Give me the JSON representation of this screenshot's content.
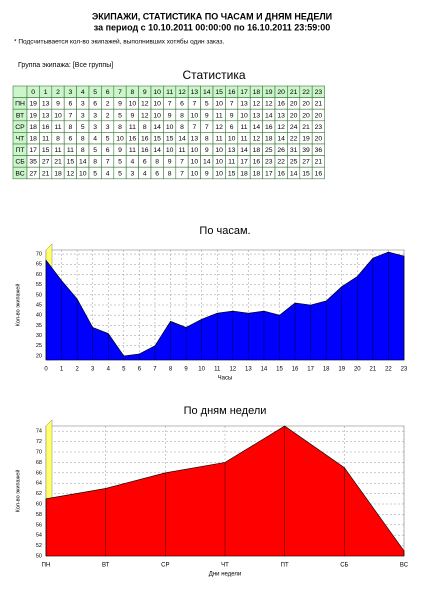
{
  "header": {
    "title": "ЭКИПАЖИ, СТАТИСТИКА ПО ЧАСАМ И ДНЯМ НЕДЕЛИ",
    "period": "за период с 10.10.2011 00:00:00 по 16.10.2011 23:59:00"
  },
  "note": "* Подсчитывается кол-во экипажей, выполнивших хотябы один заказ.",
  "group": "Группа экипажа: [Все группы]",
  "table": {
    "title": "Статистика",
    "columns": [
      0,
      1,
      2,
      3,
      4,
      5,
      6,
      7,
      8,
      9,
      10,
      11,
      12,
      13,
      14,
      15,
      16,
      17,
      18,
      19,
      20,
      21,
      22,
      23
    ],
    "rows": [
      {
        "day": "ПН",
        "values": [
          19,
          13,
          9,
          6,
          3,
          6,
          2,
          9,
          10,
          12,
          10,
          7,
          6,
          7,
          5,
          10,
          7,
          13,
          12,
          12,
          16,
          20,
          20,
          21
        ]
      },
      {
        "day": "ВТ",
        "values": [
          19,
          13,
          10,
          7,
          3,
          3,
          2,
          5,
          9,
          12,
          10,
          9,
          8,
          10,
          9,
          11,
          9,
          10,
          13,
          14,
          13,
          20,
          20,
          20
        ]
      },
      {
        "day": "СР",
        "values": [
          18,
          16,
          11,
          8,
          5,
          3,
          3,
          8,
          11,
          8,
          14,
          10,
          8,
          7,
          7,
          12,
          6,
          11,
          14,
          16,
          12,
          24,
          21,
          23
        ]
      },
      {
        "day": "ЧТ",
        "values": [
          18,
          11,
          8,
          6,
          8,
          4,
          5,
          10,
          16,
          16,
          15,
          15,
          14,
          13,
          8,
          11,
          10,
          11,
          12,
          18,
          14,
          22,
          19,
          20
        ]
      },
      {
        "day": "ПТ",
        "values": [
          17,
          15,
          11,
          11,
          8,
          5,
          6,
          9,
          11,
          16,
          14,
          10,
          11,
          10,
          9,
          10,
          13,
          14,
          18,
          25,
          26,
          31,
          39,
          36
        ]
      },
      {
        "day": "СБ",
        "values": [
          35,
          27,
          21,
          15,
          14,
          8,
          7,
          5,
          4,
          6,
          8,
          9,
          7,
          10,
          14,
          10,
          11,
          17,
          16,
          23,
          22,
          25,
          27,
          21
        ]
      },
      {
        "day": "ВС",
        "values": [
          27,
          21,
          18,
          12,
          10,
          5,
          4,
          5,
          3,
          4,
          6,
          8,
          7,
          10,
          9,
          10,
          15,
          18,
          18,
          17,
          16,
          14,
          15,
          16
        ]
      }
    ]
  },
  "chart_data": [
    {
      "type": "area",
      "title": "По часам.",
      "x_label": "Часы",
      "y_label": "Кол-во экипажей",
      "color": "#0000ff",
      "x": [
        0,
        1,
        2,
        3,
        4,
        5,
        6,
        7,
        8,
        9,
        10,
        11,
        12,
        13,
        14,
        15,
        16,
        17,
        18,
        19,
        20,
        21,
        22,
        23
      ],
      "values": [
        67,
        57,
        48,
        34,
        31,
        20,
        21,
        25,
        37,
        34,
        38,
        41,
        42,
        41,
        42,
        40,
        46,
        45,
        47,
        54,
        59,
        68,
        71,
        69
      ],
      "xlim": [
        0,
        23
      ],
      "xticks": [
        0,
        1,
        2,
        3,
        4,
        5,
        6,
        7,
        8,
        9,
        10,
        11,
        12,
        13,
        14,
        15,
        16,
        17,
        18,
        19,
        20,
        21,
        22,
        23
      ],
      "ylim": [
        18,
        72
      ],
      "yticks": [
        20,
        25,
        30,
        35,
        40,
        45,
        50,
        55,
        60,
        65,
        70
      ],
      "grid": true
    },
    {
      "type": "area",
      "title": "По дням недели",
      "x_label": "Дни недели",
      "y_label": "Кол-во экипажей",
      "color": "#ff0000",
      "categories": [
        "ПН",
        "ВТ",
        "СР",
        "ЧТ",
        "ПТ",
        "СБ",
        "ВС"
      ],
      "values": [
        61,
        63,
        66,
        68,
        75,
        67,
        51
      ],
      "ylim": [
        50,
        75
      ],
      "yticks": [
        50,
        52,
        54,
        56,
        58,
        60,
        62,
        64,
        66,
        68,
        70,
        72,
        74
      ],
      "grid": true
    }
  ]
}
